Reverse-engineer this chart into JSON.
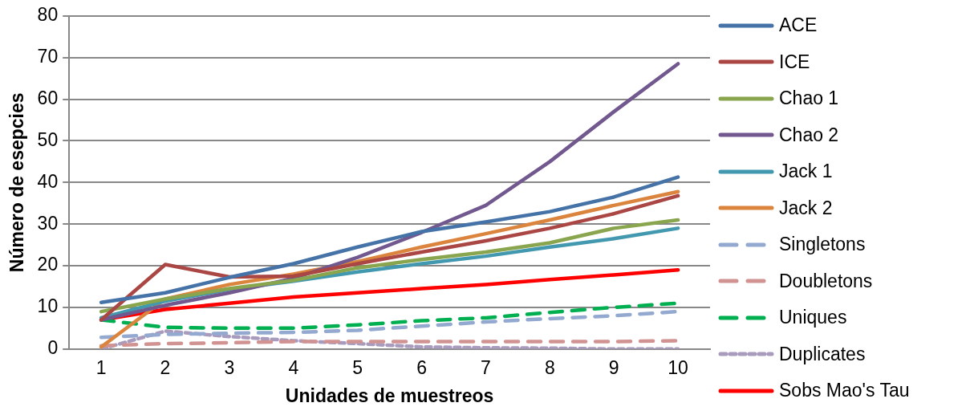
{
  "chart_data": {
    "type": "line",
    "xlabel": "Unidades de muestreos",
    "ylabel": "Número de esepcies",
    "categories": [
      "1",
      "2",
      "3",
      "4",
      "5",
      "6",
      "7",
      "8",
      "9",
      "10"
    ],
    "ylim": [
      0,
      80
    ],
    "yticks": [
      0,
      10,
      20,
      30,
      40,
      50,
      60,
      70,
      80
    ],
    "grid": "y",
    "legend": "right",
    "marker": "none",
    "series": [
      {
        "name": "ACE",
        "color": "#4572a7",
        "line_style": "solid",
        "values": [
          11.2,
          13.5,
          17.2,
          20.5,
          24.5,
          28.2,
          30.5,
          33,
          36.5,
          41.3
        ]
      },
      {
        "name": "ICE",
        "color": "#aa4643",
        "line_style": "solid",
        "values": [
          7,
          20.3,
          17.3,
          17.5,
          20.5,
          23.3,
          26,
          29,
          32.5,
          36.8
        ]
      },
      {
        "name": "Chao 1",
        "color": "#89a54e",
        "line_style": "solid",
        "values": [
          9,
          12,
          14.5,
          16.5,
          19.5,
          21.5,
          23.3,
          25.5,
          29,
          31
        ]
      },
      {
        "name": "Chao 2",
        "color": "#71588f",
        "line_style": "solid",
        "values": [
          7,
          10.5,
          13.5,
          17,
          22,
          28,
          34.5,
          45,
          57,
          68.5
        ]
      },
      {
        "name": "Jack 1",
        "color": "#4198af",
        "line_style": "solid",
        "values": [
          7.5,
          11.5,
          14.3,
          16.3,
          18.5,
          20.5,
          22.3,
          24.5,
          26.5,
          29
        ]
      },
      {
        "name": "Jack 2",
        "color": "#db843d",
        "line_style": "solid",
        "values": [
          0.5,
          12,
          15.5,
          18,
          21,
          24.5,
          27.7,
          31,
          34.5,
          37.8
        ]
      },
      {
        "name": "Singletons",
        "color": "#93a9cf",
        "line_style": "dashed",
        "values": [
          2.8,
          3.5,
          3.8,
          4,
          4.5,
          5.5,
          6.5,
          7.3,
          8,
          9
        ]
      },
      {
        "name": "Doubletons",
        "color": "#d19392",
        "line_style": "dashed",
        "values": [
          0.8,
          1.3,
          1.5,
          1.8,
          1.8,
          1.8,
          1.8,
          1.8,
          1.8,
          2
        ]
      },
      {
        "name": "Uniques",
        "color": "#00b050",
        "line_style": "dashed",
        "values": [
          7,
          5.2,
          5,
          5,
          5.8,
          6.8,
          7.5,
          8.8,
          10,
          11
        ]
      },
      {
        "name": "Duplicates",
        "color": "#a99bbd",
        "line_style": "dotted",
        "values": [
          0,
          4.3,
          3,
          2,
          1.3,
          0.5,
          0.3,
          0.2,
          0,
          0
        ]
      },
      {
        "name": "Sobs Mao's Tau",
        "color": "#ff0000",
        "line_style": "solid",
        "values": [
          7,
          9.5,
          11,
          12.5,
          13.5,
          14.5,
          15.5,
          16.7,
          17.8,
          19
        ]
      }
    ]
  }
}
